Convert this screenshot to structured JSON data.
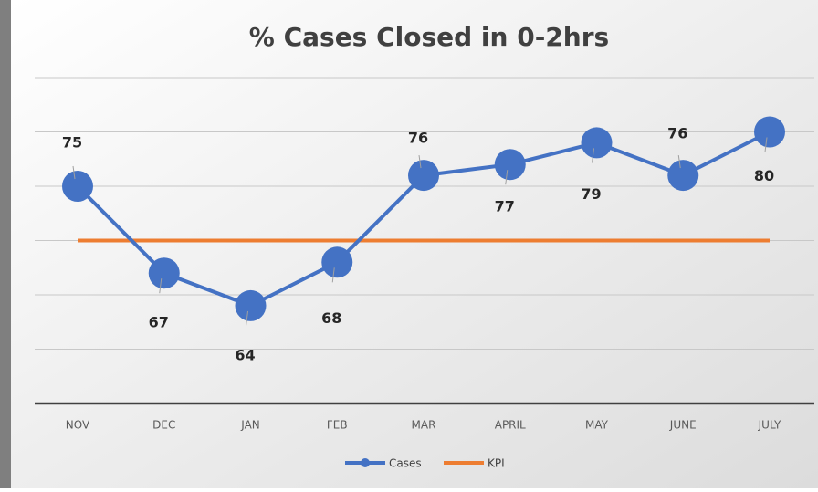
{
  "chart_data": {
    "type": "line",
    "title": "% Cases Closed in 0-2hrs",
    "categories": [
      "NOV",
      "DEC",
      "JAN",
      "FEB",
      "MAR",
      "APRIL",
      "MAY",
      "JUNE",
      "JULY"
    ],
    "series": [
      {
        "name": "Cases",
        "color": "#4472c4",
        "values": [
          75,
          67,
          64,
          68,
          76,
          77,
          79,
          76,
          80
        ]
      },
      {
        "name": "KPI",
        "color": "#ed7d31",
        "values": [
          70,
          70,
          70,
          70,
          70,
          70,
          70,
          70,
          70
        ]
      }
    ],
    "ylim": [
      55,
      85
    ],
    "yticks": [
      55,
      60,
      65,
      70,
      75,
      80,
      85
    ],
    "grid": true,
    "legend": "bottom"
  }
}
